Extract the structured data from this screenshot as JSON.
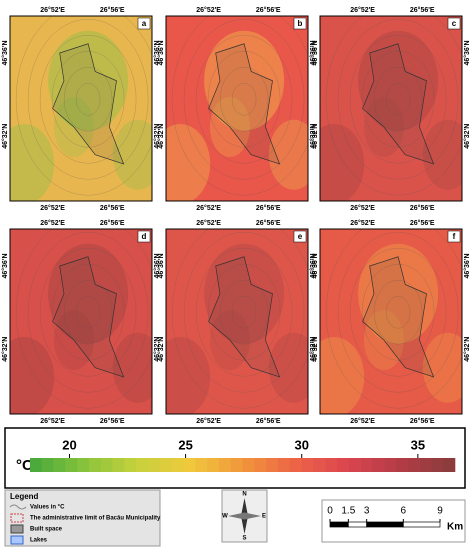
{
  "panels": [
    {
      "label": "a",
      "base": "#e8b64e",
      "blob": "#8fc04a"
    },
    {
      "label": "b",
      "base": "#e9564a",
      "blob": "#f2b84c"
    },
    {
      "label": "c",
      "base": "#d9534a",
      "blob": "#a84444"
    },
    {
      "label": "d",
      "base": "#d8504a",
      "blob": "#a24242"
    },
    {
      "label": "e",
      "base": "#de564a",
      "blob": "#b04646"
    },
    {
      "label": "f",
      "base": "#e65a48",
      "blob": "#f0a046"
    }
  ],
  "axes": {
    "lon": [
      "26°52'E",
      "26°56'E"
    ],
    "lat": [
      "46°36'N",
      "46°32'N"
    ]
  },
  "colorbar": {
    "unit": "°C",
    "clim": [
      18.3,
      36.6
    ],
    "ticks": [
      20,
      25,
      30,
      35
    ],
    "colors": [
      "#4caa3c",
      "#8cc43c",
      "#c8d23c",
      "#f0c83c",
      "#f0963c",
      "#ec6446",
      "#dc4650",
      "#b43c46",
      "#8c3c3c"
    ]
  },
  "legend": {
    "title": "Legend",
    "items": [
      "Values in °C",
      "The administrative limit of Bacău Municipality",
      "Built space",
      "Lakes"
    ]
  },
  "compass": {
    "n": "N",
    "e": "E",
    "s": "S",
    "w": "W"
  },
  "scale": {
    "ticks": [
      0,
      1.5,
      3,
      6,
      9
    ],
    "unit": "Km"
  }
}
